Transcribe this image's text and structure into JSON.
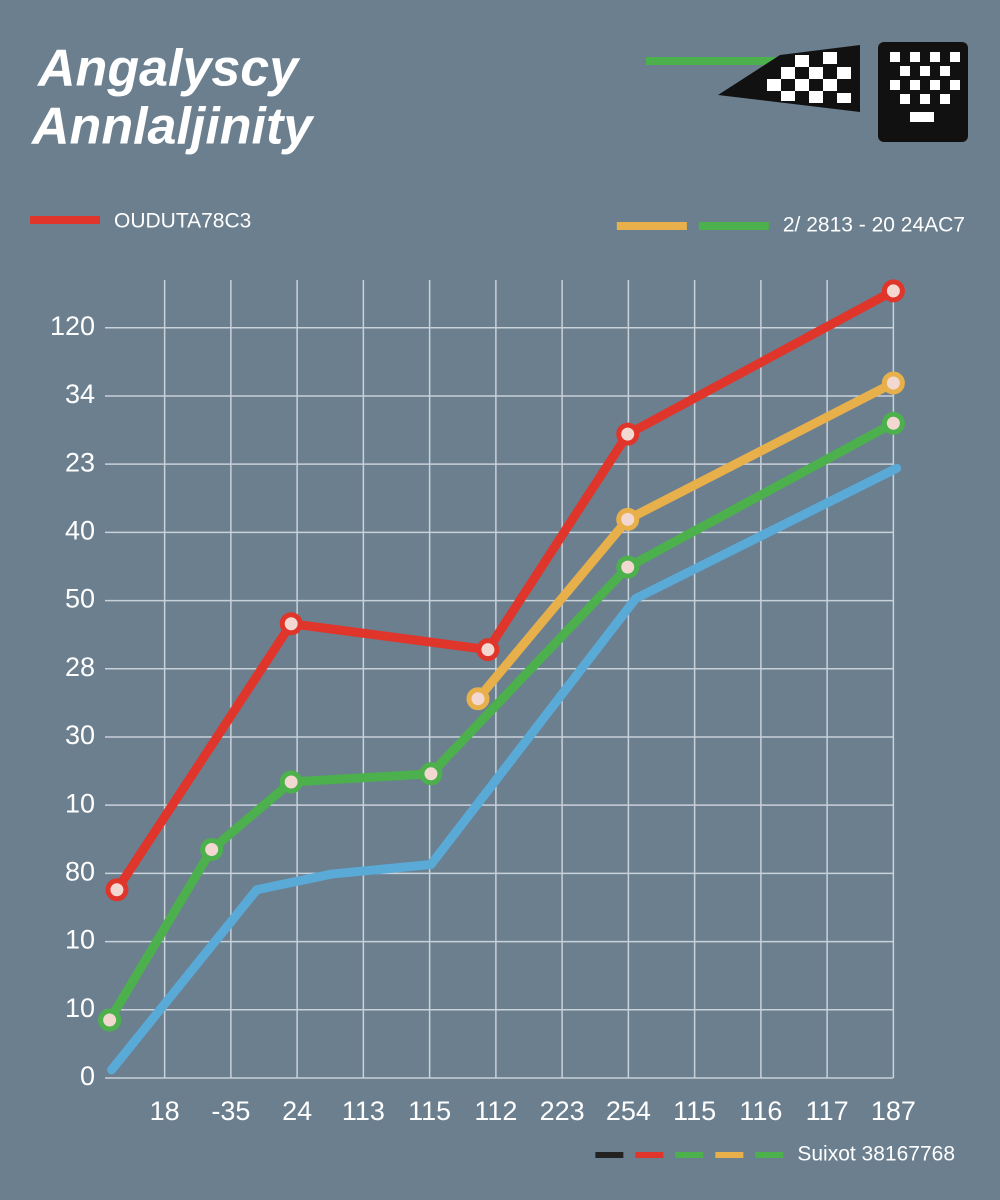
{
  "chart_data": {
    "type": "line",
    "title": [
      "Angalyscy",
      "Annlaljinity"
    ],
    "xlim": [
      -0.9,
      11.1
    ],
    "ylim": [
      0,
      11.7
    ],
    "xticks": [
      {
        "value": 0,
        "label": "18"
      },
      {
        "value": 1,
        "label": "-35"
      },
      {
        "value": 2,
        "label": "24"
      },
      {
        "value": 3,
        "label": "113"
      },
      {
        "value": 4,
        "label": "115"
      },
      {
        "value": 5,
        "label": "112"
      },
      {
        "value": 6,
        "label": "223"
      },
      {
        "value": 7,
        "label": "254"
      },
      {
        "value": 8,
        "label": "115"
      },
      {
        "value": 9,
        "label": "116"
      },
      {
        "value": 10,
        "label": "117"
      },
      {
        "value": 11,
        "label": "187"
      }
    ],
    "yticks": [
      0,
      {
        "value": 1,
        "label": "10"
      },
      {
        "value": 2,
        "label": "10"
      },
      {
        "value": 3,
        "label": "80"
      },
      {
        "value": 4,
        "label": "10"
      },
      {
        "value": 5,
        "label": "30"
      },
      {
        "value": 6,
        "label": "28"
      },
      {
        "value": 7,
        "label": "50"
      },
      {
        "value": 8,
        "label": "40"
      },
      {
        "value": 9,
        "label": "23"
      },
      {
        "value": 10,
        "label": "34"
      },
      {
        "value": 11,
        "label": "120"
      }
    ],
    "grid": true,
    "series": [
      {
        "color": "#5aaad8",
        "markers": false,
        "x": [
          -0.8,
          1.39,
          2.52,
          4.02,
          7.11,
          11.05
        ],
        "values": [
          0.12,
          2.76,
          2.99,
          3.13,
          7.03,
          8.94
        ]
      },
      {
        "color": "#4cb04c",
        "markers": true,
        "x": [
          -0.83,
          0.71,
          1.91,
          4.02,
          6.99,
          11
        ],
        "values": [
          0.85,
          3.35,
          4.34,
          4.46,
          7.49,
          9.6
        ]
      },
      {
        "color": "#e8b04a",
        "markers": true,
        "x": [
          4.73,
          6.99,
          11
        ],
        "values": [
          5.56,
          8.19,
          10.19
        ]
      },
      {
        "color": "#e0352b",
        "markers": true,
        "x": [
          -0.72,
          1.91,
          4.88,
          6.99,
          11
        ],
        "values": [
          2.76,
          6.66,
          6.28,
          9.44,
          11.54
        ]
      }
    ],
    "legends": [
      {
        "label": "OUDUTA78C3",
        "colors": [
          "#e0352b"
        ]
      },
      {
        "label": "2/ 2813 - 20 24AC7",
        "colors": [
          "#e8b04a",
          "#4cb04c"
        ]
      },
      {
        "label": "Suixot 38167768",
        "colors": [
          "#222222",
          "#e0352b",
          "#4cb04c",
          "#e8b04a",
          "#4cb04c"
        ]
      }
    ]
  }
}
